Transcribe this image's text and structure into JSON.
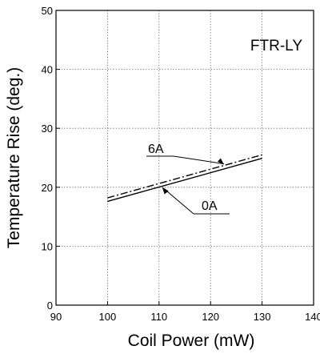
{
  "chart_data": {
    "type": "line",
    "title": "FTR-LY",
    "xlabel": "Coil Power (mW)",
    "ylabel": "Temperature Rise (deg.)",
    "xlim": [
      90,
      140
    ],
    "ylim": [
      0,
      50
    ],
    "xticks": [
      90,
      100,
      110,
      120,
      130,
      140
    ],
    "yticks": [
      0,
      10,
      20,
      30,
      40,
      50
    ],
    "grid": true,
    "series": [
      {
        "name": "6A",
        "style": "dash-dot",
        "x": [
          100,
          130
        ],
        "y": [
          18.2,
          25.5
        ],
        "label_x": 122.6
      },
      {
        "name": "0A",
        "style": "solid",
        "x": [
          100,
          130
        ],
        "y": [
          17.6,
          24.9
        ],
        "label_x": 110.6
      }
    ]
  }
}
